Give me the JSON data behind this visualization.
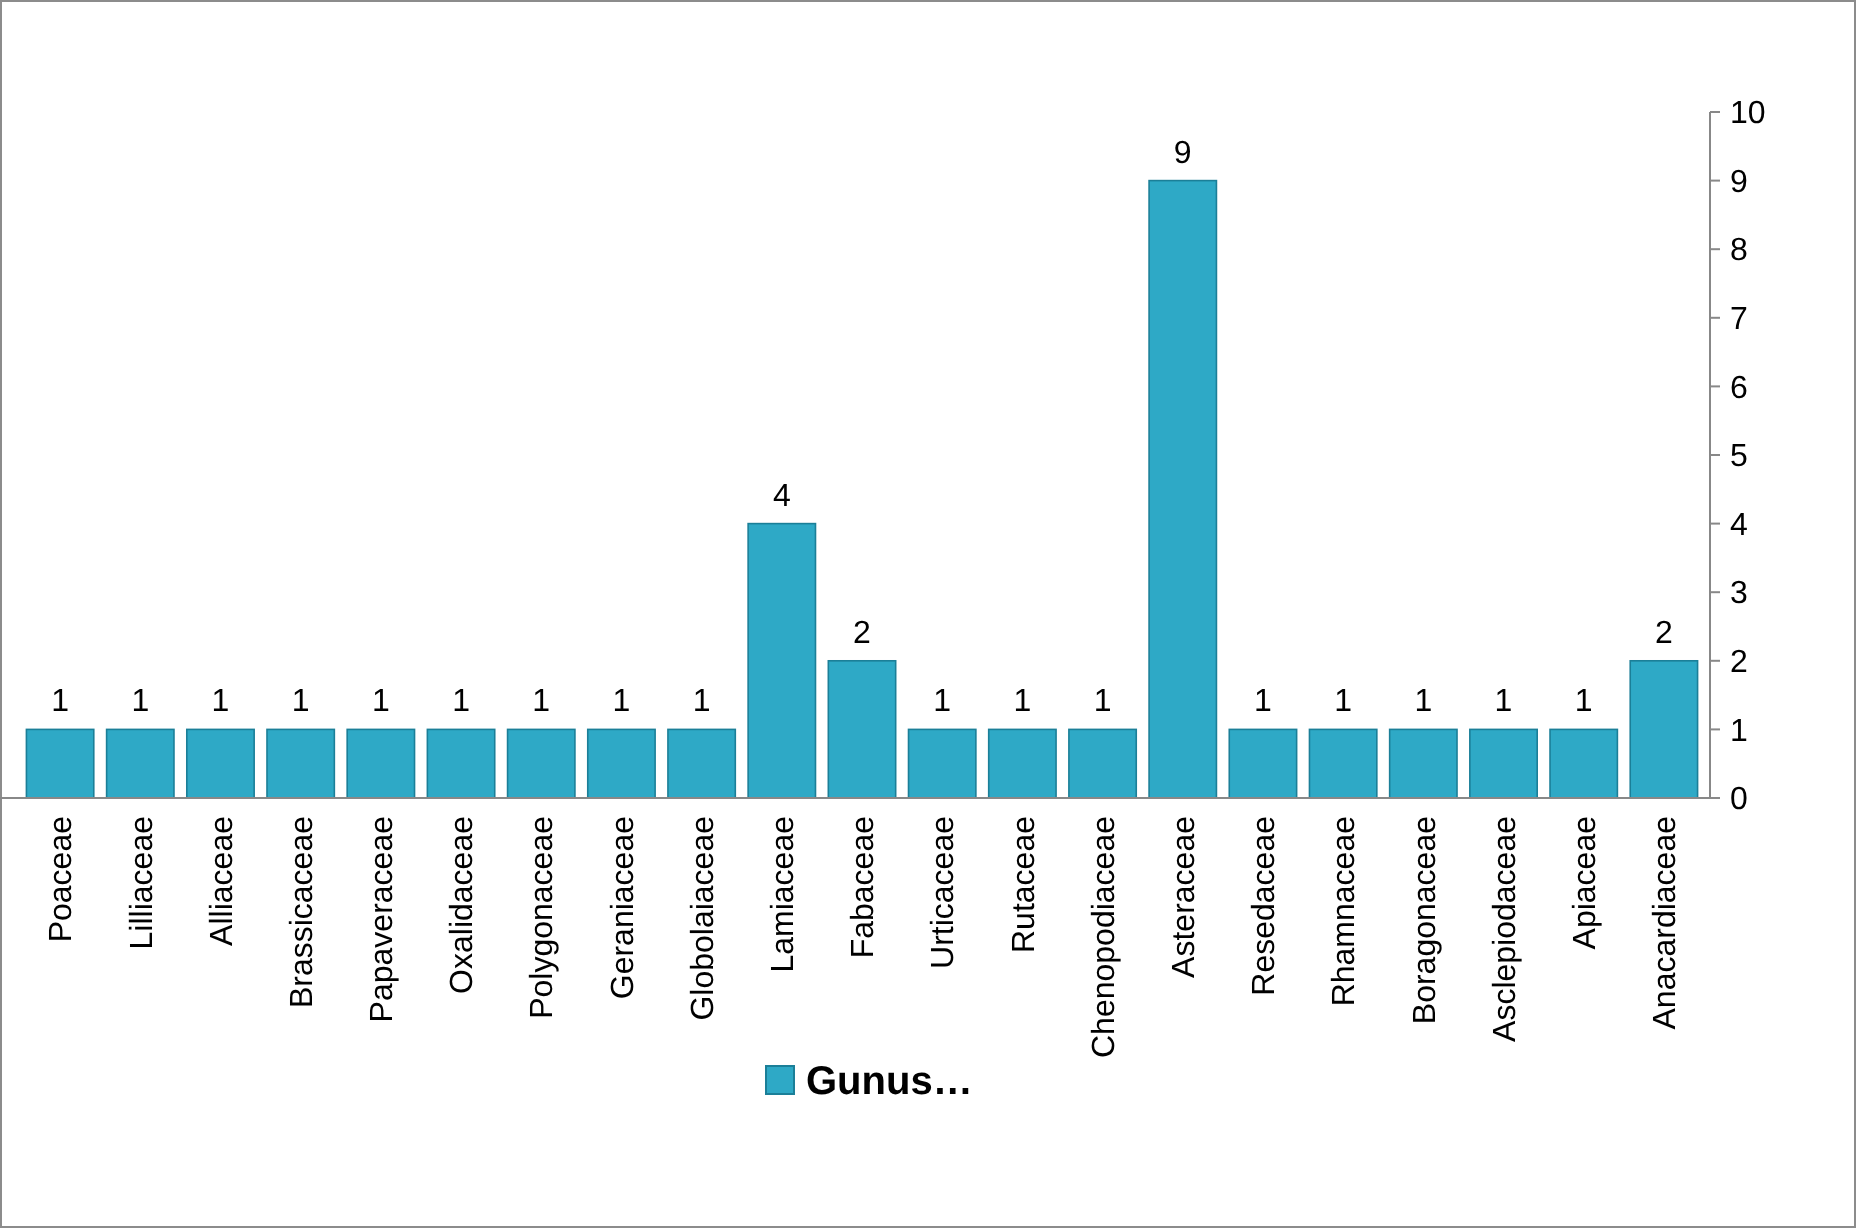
{
  "chart_data": {
    "type": "bar",
    "categories": [
      "Poaceae",
      "Lilliaceae",
      "Alliaceae",
      "Brassicaceae",
      "Papaveraceae",
      "Oxalidaceae",
      "Polygonaceae",
      "Geraniaceae",
      "Globolaiaceae",
      "Lamiaceae",
      "Fabaceae",
      "Urticaceae",
      "Rutaceae",
      "Chenopodiaceae",
      "Asteraceae",
      "Resedaceae",
      "Rhamnaceae",
      "Boragonaceae",
      "Asclepiodaceae",
      "Apiaceae",
      "Anacardiaceae"
    ],
    "series": [
      {
        "name": "Gunus…",
        "color": "#2ea9c6",
        "values": [
          1,
          1,
          1,
          1,
          1,
          1,
          1,
          1,
          1,
          4,
          2,
          1,
          1,
          1,
          9,
          1,
          1,
          1,
          1,
          1,
          2
        ]
      }
    ],
    "ylim": [
      0,
      10
    ],
    "yticks": [
      0,
      1,
      2,
      3,
      4,
      5,
      6,
      7,
      8,
      9,
      10
    ],
    "grid": false,
    "legend": "bottom",
    "data_labels": true
  }
}
